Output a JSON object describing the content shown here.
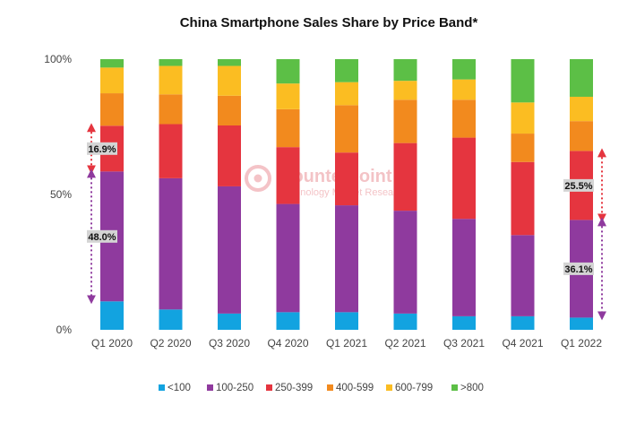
{
  "chart_data": {
    "type": "bar",
    "stacked": true,
    "title": "China Smartphone Sales Share by Price Band*",
    "xlabel": "",
    "ylabel": "",
    "ylim": [
      0,
      100
    ],
    "y_ticks": [
      "0%",
      "50%",
      "100%"
    ],
    "grid": false,
    "legend_position": "bottom",
    "categories": [
      "Q1 2020",
      "Q2 2020",
      "Q3 2020",
      "Q4 2020",
      "Q1 2021",
      "Q2 2021",
      "Q3 2021",
      "Q4 2021",
      "Q1 2022"
    ],
    "series": [
      {
        "name": "<100",
        "color": "#12a3e0",
        "values": [
          10.5,
          7.5,
          6.0,
          6.5,
          6.5,
          6.0,
          5.0,
          5.0,
          4.5
        ]
      },
      {
        "name": "100-250",
        "color": "#8f3a9e",
        "values": [
          48.0,
          48.5,
          47.0,
          40.0,
          39.5,
          38.0,
          36.0,
          30.0,
          36.1
        ]
      },
      {
        "name": "250-399",
        "color": "#e5353f",
        "values": [
          16.9,
          20.0,
          22.5,
          21.0,
          19.5,
          25.0,
          30.0,
          27.0,
          25.5
        ]
      },
      {
        "name": "400-599",
        "color": "#f28a1e",
        "values": [
          12.0,
          11.0,
          11.0,
          14.0,
          17.5,
          16.0,
          14.0,
          10.5,
          11.0
        ]
      },
      {
        "name": "600-799",
        "color": "#fbbd22",
        "values": [
          9.5,
          10.5,
          11.0,
          9.5,
          8.5,
          7.0,
          7.5,
          11.5,
          9.0
        ]
      },
      {
        "name": ">800",
        "color": "#5cbf46",
        "values": [
          3.1,
          2.5,
          2.5,
          9.0,
          8.5,
          8.0,
          7.5,
          16.0,
          13.9
        ]
      }
    ],
    "annotations": [
      {
        "category": "Q1 2020",
        "series": "250-399",
        "label": "16.9%",
        "arrow_color": "#e5353f",
        "side": "left"
      },
      {
        "category": "Q1 2020",
        "series": "100-250",
        "label": "48.0%",
        "arrow_color": "#8f3a9e",
        "side": "left"
      },
      {
        "category": "Q1 2022",
        "series": "250-399",
        "label": "25.5%",
        "arrow_color": "#e5353f",
        "side": "right"
      },
      {
        "category": "Q1 2022",
        "series": "100-250",
        "label": "36.1%",
        "arrow_color": "#8f3a9e",
        "side": "right"
      }
    ]
  },
  "watermark": {
    "brand": "Counterpoint",
    "tagline": "Technology Market Research",
    "color": "#e8707a"
  }
}
